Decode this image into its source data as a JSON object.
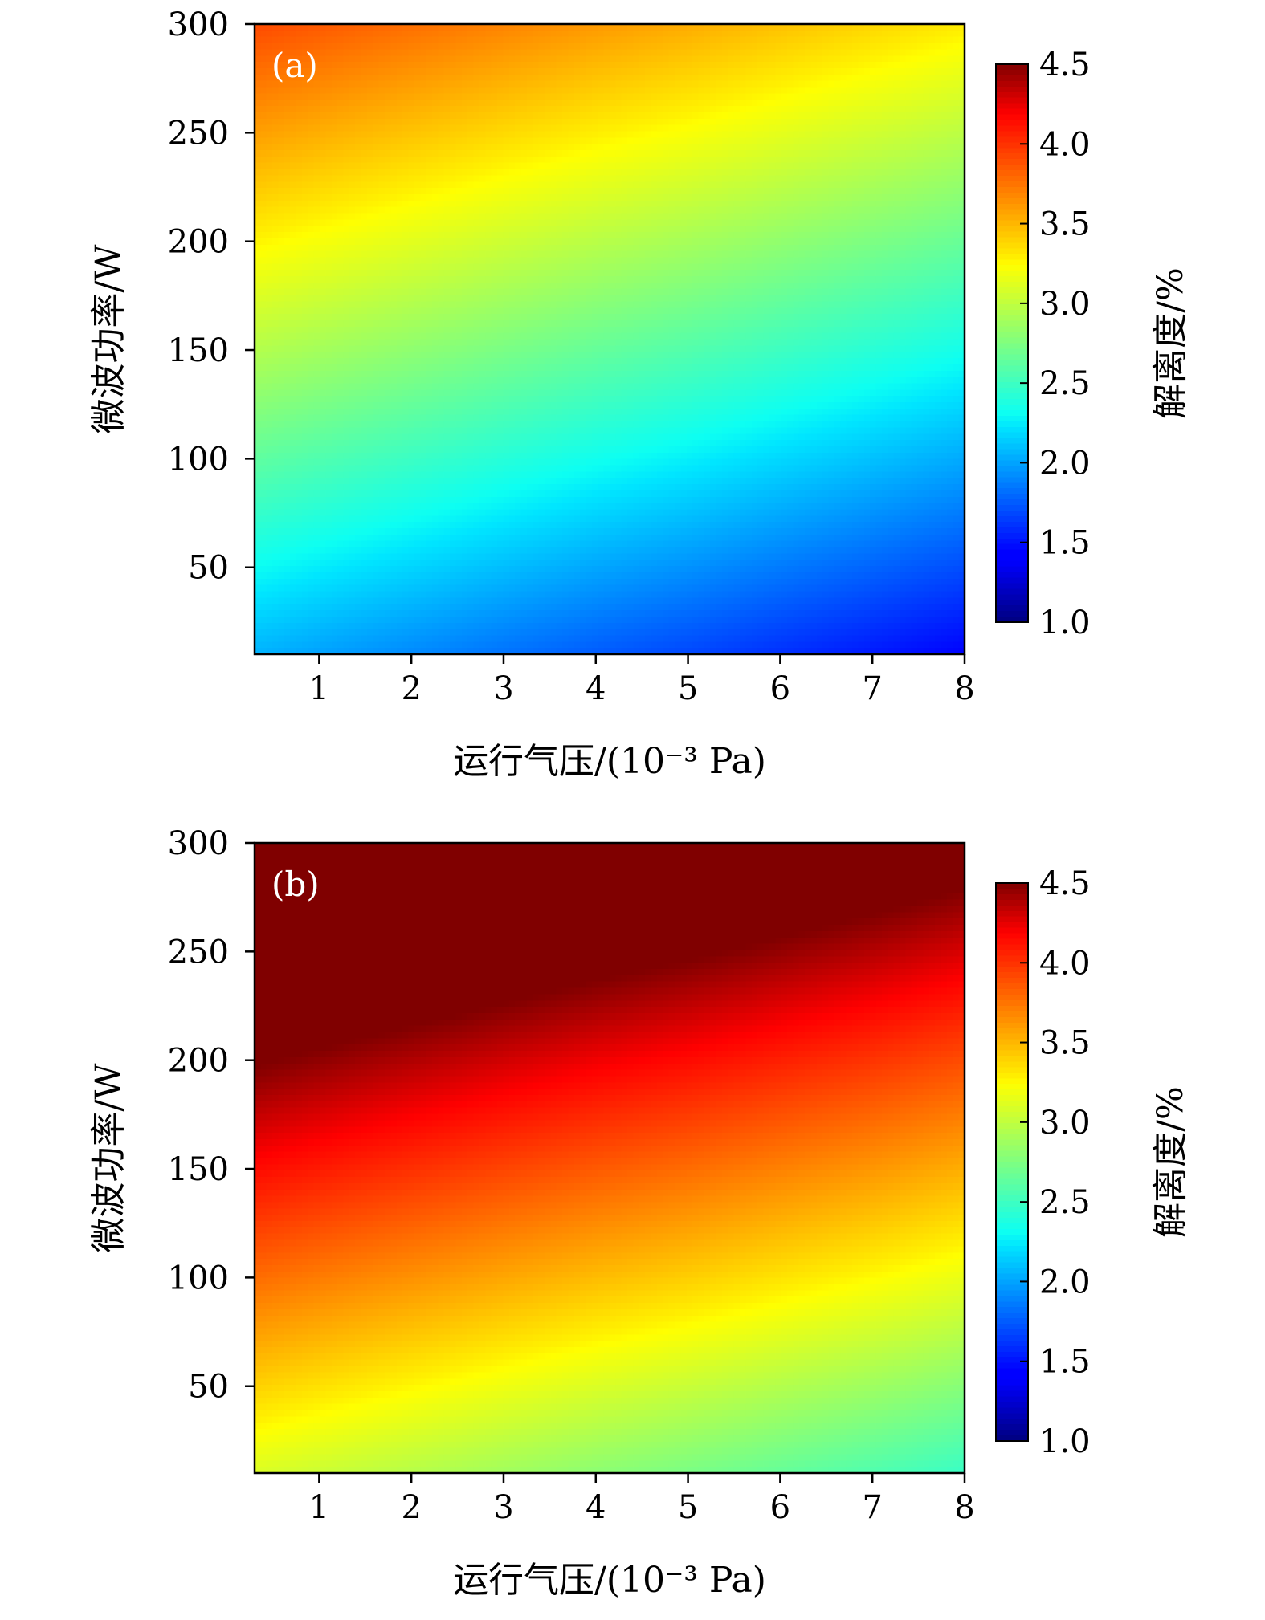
{
  "chart_data": [
    {
      "type": "heatmap",
      "panel_label": "(a)",
      "xlabel": "运行气压/(10⁻³ Pa)",
      "ylabel": "微波功率/W",
      "colorbar_label": "解离度/%",
      "x_ticks": [
        1,
        2,
        3,
        4,
        5,
        6,
        7,
        8
      ],
      "x_tick_labels": [
        "1",
        "2",
        "3",
        "4",
        "5",
        "6",
        "7",
        "8"
      ],
      "y_ticks": [
        50,
        100,
        150,
        200,
        250,
        300
      ],
      "y_tick_labels": [
        "50",
        "100",
        "150",
        "200",
        "250",
        "300"
      ],
      "xlim": [
        0.3,
        8
      ],
      "ylim": [
        10,
        300
      ],
      "clim": [
        1.0,
        4.5
      ],
      "colorbar_ticks": [
        1.0,
        1.5,
        2.0,
        2.5,
        3.0,
        3.5,
        4.0,
        4.5
      ],
      "colorbar_tick_labels": [
        "1.0",
        "1.5",
        "2.0",
        "2.5",
        "3.0",
        "3.5",
        "4.0",
        "4.5"
      ],
      "colormap": "jet",
      "x": [
        0.3,
        1,
        2,
        3,
        4,
        5,
        6,
        7,
        8
      ],
      "y": [
        10,
        50,
        100,
        150,
        200,
        250,
        300
      ],
      "z": [
        [
          2.05,
          1.99,
          1.91,
          1.83,
          1.75,
          1.68,
          1.6,
          1.52,
          1.44
        ],
        [
          2.31,
          2.25,
          2.17,
          2.09,
          2.01,
          1.94,
          1.86,
          1.78,
          1.7
        ],
        [
          2.63,
          2.57,
          2.49,
          2.41,
          2.33,
          2.26,
          2.18,
          2.1,
          2.02
        ],
        [
          2.95,
          2.89,
          2.81,
          2.73,
          2.65,
          2.58,
          2.5,
          2.42,
          2.34
        ],
        [
          3.27,
          3.21,
          3.13,
          3.05,
          2.97,
          2.9,
          2.82,
          2.74,
          2.66
        ],
        [
          3.59,
          3.53,
          3.45,
          3.37,
          3.29,
          3.22,
          3.14,
          3.06,
          2.98
        ],
        [
          3.91,
          3.85,
          3.77,
          3.69,
          3.61,
          3.54,
          3.46,
          3.38,
          3.3
        ]
      ]
    },
    {
      "type": "heatmap",
      "panel_label": "(b)",
      "xlabel": "运行气压/(10⁻³ Pa)",
      "ylabel": "微波功率/W",
      "colorbar_label": "解离度/%",
      "x_ticks": [
        1,
        2,
        3,
        4,
        5,
        6,
        7,
        8
      ],
      "x_tick_labels": [
        "1",
        "2",
        "3",
        "4",
        "5",
        "6",
        "7",
        "8"
      ],
      "y_ticks": [
        50,
        100,
        150,
        200,
        250,
        300
      ],
      "y_tick_labels": [
        "50",
        "100",
        "150",
        "200",
        "250",
        "300"
      ],
      "xlim": [
        0.3,
        8
      ],
      "ylim": [
        10,
        300
      ],
      "clim": [
        1.0,
        4.5
      ],
      "colorbar_ticks": [
        1.0,
        1.5,
        2.0,
        2.5,
        3.0,
        3.5,
        4.0,
        4.5
      ],
      "colorbar_tick_labels": [
        "1.0",
        "1.5",
        "2.0",
        "2.5",
        "3.0",
        "3.5",
        "4.0",
        "4.5"
      ],
      "colormap": "jet",
      "x": [
        0.3,
        1,
        2,
        3,
        4,
        5,
        6,
        7,
        8
      ],
      "y": [
        10,
        50,
        100,
        150,
        200,
        250,
        300
      ],
      "z": [
        [
          3.1,
          3.04,
          2.96,
          2.88,
          2.8,
          2.73,
          2.65,
          2.57,
          2.48
        ],
        [
          3.4,
          3.34,
          3.26,
          3.18,
          3.1,
          3.03,
          2.95,
          2.87,
          2.78
        ],
        [
          3.78,
          3.72,
          3.64,
          3.56,
          3.48,
          3.41,
          3.33,
          3.25,
          3.16
        ],
        [
          4.15,
          4.09,
          4.01,
          3.93,
          3.85,
          3.78,
          3.7,
          3.62,
          3.53
        ],
        [
          4.52,
          4.46,
          4.38,
          4.3,
          4.22,
          4.15,
          4.07,
          3.99,
          3.9
        ],
        [
          4.9,
          4.84,
          4.76,
          4.68,
          4.6,
          4.53,
          4.45,
          4.37,
          4.28
        ],
        [
          5.28,
          5.22,
          5.14,
          5.06,
          4.98,
          4.91,
          4.83,
          4.75,
          4.66
        ]
      ]
    }
  ]
}
